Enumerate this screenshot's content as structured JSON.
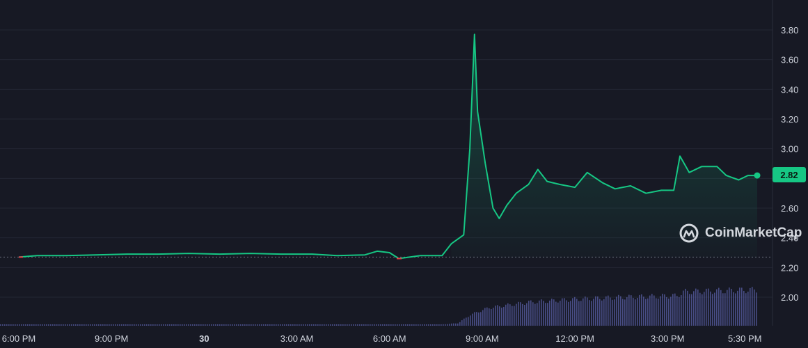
{
  "chart_data": {
    "type": "line",
    "title": "",
    "xlabel": "",
    "ylabel": "",
    "ylim": [
      1.8,
      3.9
    ],
    "y_ticks": [
      "3.80",
      "3.60",
      "3.40",
      "3.20",
      "3.00",
      "2.80",
      "2.60",
      "2.40",
      "2.20",
      "2.00"
    ],
    "y_tick_values": [
      3.8,
      3.6,
      3.4,
      3.2,
      3.0,
      2.8,
      2.6,
      2.4,
      2.2,
      2.0
    ],
    "x_ticks": [
      {
        "label": "6:00 PM",
        "hour": 0,
        "bold": false
      },
      {
        "label": "9:00 PM",
        "hour": 3,
        "bold": false
      },
      {
        "label": "30",
        "hour": 6,
        "bold": true
      },
      {
        "label": "3:00 AM",
        "hour": 9,
        "bold": false
      },
      {
        "label": "6:00 AM",
        "hour": 12,
        "bold": false
      },
      {
        "label": "9:00 AM",
        "hour": 15,
        "bold": false
      },
      {
        "label": "12:00 PM",
        "hour": 18,
        "bold": false
      },
      {
        "label": "3:00 PM",
        "hour": 21,
        "bold": false
      },
      {
        "label": "5:30 PM",
        "hour": 23.5,
        "bold": false
      }
    ],
    "x_range_hours": [
      0,
      24
    ],
    "reference_price": 2.27,
    "series": [
      {
        "name": "",
        "color": "#16c784",
        "points": [
          [
            0,
            2.27
          ],
          [
            0.6,
            2.28
          ],
          [
            1.5,
            2.28
          ],
          [
            2.5,
            2.285
          ],
          [
            3.5,
            2.29
          ],
          [
            4.5,
            2.29
          ],
          [
            5.5,
            2.295
          ],
          [
            6.5,
            2.29
          ],
          [
            7.5,
            2.295
          ],
          [
            8.5,
            2.29
          ],
          [
            9.5,
            2.29
          ],
          [
            10.3,
            2.28
          ],
          [
            11.2,
            2.285
          ],
          [
            11.6,
            2.31
          ],
          [
            12.0,
            2.3
          ],
          [
            12.3,
            2.26
          ],
          [
            13.0,
            2.28
          ],
          [
            13.7,
            2.28
          ],
          [
            14.0,
            2.36
          ],
          [
            14.4,
            2.42
          ],
          [
            14.6,
            3.0
          ],
          [
            14.75,
            3.77
          ],
          [
            14.85,
            3.25
          ],
          [
            15.1,
            2.9
          ],
          [
            15.35,
            2.6
          ],
          [
            15.55,
            2.53
          ],
          [
            15.8,
            2.62
          ],
          [
            16.1,
            2.7
          ],
          [
            16.5,
            2.76
          ],
          [
            16.8,
            2.86
          ],
          [
            17.1,
            2.78
          ],
          [
            17.5,
            2.76
          ],
          [
            18.0,
            2.74
          ],
          [
            18.4,
            2.84
          ],
          [
            18.9,
            2.77
          ],
          [
            19.3,
            2.73
          ],
          [
            19.8,
            2.75
          ],
          [
            20.3,
            2.7
          ],
          [
            20.8,
            2.72
          ],
          [
            21.2,
            2.72
          ],
          [
            21.4,
            2.95
          ],
          [
            21.7,
            2.84
          ],
          [
            22.1,
            2.88
          ],
          [
            22.6,
            2.88
          ],
          [
            22.9,
            2.82
          ],
          [
            23.3,
            2.79
          ],
          [
            23.6,
            2.82
          ],
          [
            23.9,
            2.82
          ]
        ]
      }
    ],
    "current_price_label": "2.82",
    "volume": {
      "color": "#5a5fa6",
      "points": [
        [
          0,
          0.02
        ],
        [
          13.5,
          0.02
        ],
        [
          14.2,
          0.05
        ],
        [
          14.6,
          0.22
        ],
        [
          15.2,
          0.36
        ],
        [
          16.5,
          0.47
        ],
        [
          18.0,
          0.53
        ],
        [
          19.5,
          0.57
        ],
        [
          21.3,
          0.6
        ],
        [
          21.5,
          0.68
        ],
        [
          23.9,
          0.72
        ]
      ]
    }
  },
  "watermark": {
    "text": "CoinMarketCap",
    "icon": "coinmarketcap-logo-icon"
  }
}
